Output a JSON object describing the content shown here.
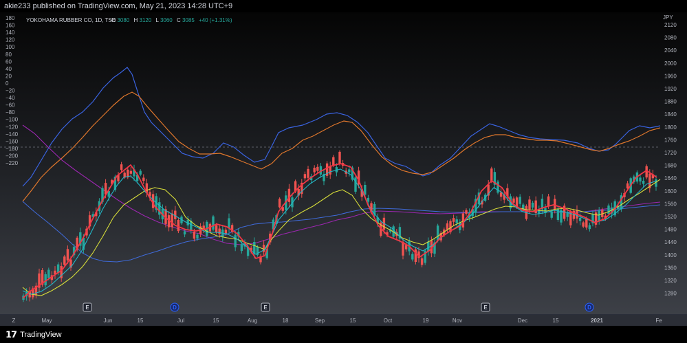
{
  "header": {
    "publisher_line": "akie233 published on TradingView.com, May 21, 2023 14:28 UTC+9"
  },
  "legend": {
    "symbol": "YOKOHAMA RUBBER CO, 1D, TSE",
    "open_label": "O",
    "open": "3080",
    "high_label": "H",
    "high": "3120",
    "low_label": "L",
    "low": "3060",
    "close_label": "C",
    "close": "3085",
    "change": "+40 (+1.31%)"
  },
  "currency": "JPY",
  "left_axis": {
    "ticks": [
      "180",
      "160",
      "140",
      "120",
      "100",
      "80",
      "60",
      "40",
      "20",
      "0",
      "−20",
      "−40",
      "−60",
      "−80",
      "−100",
      "−120",
      "−140",
      "−160",
      "−180",
      "−200",
      "−220"
    ]
  },
  "right_axis": {
    "ticks": [
      "2120",
      "2080",
      "2040",
      "2000",
      "1960",
      "1920",
      "1880",
      "1840",
      "1800",
      "1760",
      "1720",
      "1680",
      "1640",
      "1600",
      "1560",
      "1520",
      "1480",
      "1440",
      "1400",
      "1360",
      "1320",
      "1280"
    ]
  },
  "time_axis": {
    "corner": "Z",
    "labels": [
      "May",
      "Jun",
      "15",
      "Jul",
      "15",
      "Aug",
      "18",
      "Sep",
      "15",
      "Oct",
      "19",
      "Nov",
      "Dec",
      "15",
      "2021",
      "Fe"
    ]
  },
  "event_badges": [
    {
      "type": "earnings",
      "text": "E"
    },
    {
      "type": "dividend",
      "text": "D"
    },
    {
      "type": "earnings",
      "text": "E"
    },
    {
      "type": "earnings",
      "text": "E"
    },
    {
      "type": "dividend",
      "text": "D"
    }
  ],
  "footer": {
    "brand": "TradingView"
  },
  "colors": {
    "up": "#26a69a",
    "down": "#ef5350",
    "ma_red": "#f23645",
    "ma_teal": "#22b8c8",
    "ma_yellow": "#d6dc3a",
    "ma_purple": "#9c27b0",
    "ma_blue": "#3f6ad8",
    "osc_blue": "#3a63e0",
    "osc_orange": "#e0772c"
  }
}
